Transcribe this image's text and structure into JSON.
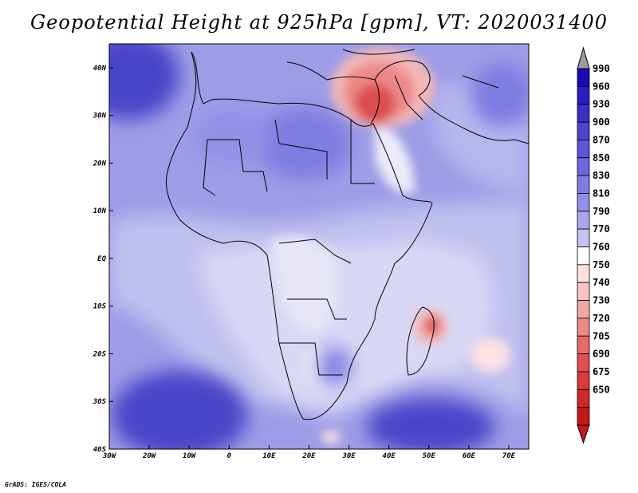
{
  "title": "Geopotential Height at 925hPa [gpm], VT: 2020031400",
  "credit": "GrADS: IGES/COLA",
  "colors": {
    "background_purple": "#9d9de7",
    "light_purple": "#c0c0ef",
    "pale": "#dcdcf6",
    "deep_purple": "#4a44c8",
    "red_core": "#dc4e4e",
    "land_pale": "#e6e6f7"
  },
  "map_data": {
    "lon_range": [
      -30,
      75
    ],
    "lat_range": [
      -40,
      45
    ],
    "lon_ticks": [
      {
        "label": "30W",
        "value": -30
      },
      {
        "label": "20W",
        "value": -20
      },
      {
        "label": "10W",
        "value": -10
      },
      {
        "label": "0",
        "value": 0
      },
      {
        "label": "10E",
        "value": 10
      },
      {
        "label": "20E",
        "value": 20
      },
      {
        "label": "30E",
        "value": 30
      },
      {
        "label": "40E",
        "value": 40
      },
      {
        "label": "50E",
        "value": 50
      },
      {
        "label": "60E",
        "value": 60
      },
      {
        "label": "70E",
        "value": 70
      }
    ],
    "lat_ticks": [
      {
        "label": "40N",
        "value": 40
      },
      {
        "label": "30N",
        "value": 30
      },
      {
        "label": "20N",
        "value": 20
      },
      {
        "label": "10N",
        "value": 10
      },
      {
        "label": "EQ",
        "value": 0
      },
      {
        "label": "10S",
        "value": -10
      },
      {
        "label": "20S",
        "value": -20
      },
      {
        "label": "30S",
        "value": -30
      },
      {
        "label": "40S",
        "value": -40
      }
    ]
  },
  "colorbar": {
    "levels": [
      "990",
      "960",
      "930",
      "900",
      "870",
      "850",
      "830",
      "810",
      "790",
      "770",
      "760",
      "750",
      "740",
      "730",
      "720",
      "705",
      "690",
      "675",
      "650"
    ],
    "colors": [
      "#1a0bb0",
      "#2a1ec0",
      "#3a30c8",
      "#4a44cf",
      "#5a56d6",
      "#6c68dc",
      "#7f7ce2",
      "#9390e8",
      "#a8a6ee",
      "#c4c3f4",
      "#ffffff",
      "#fde2e2",
      "#f8c4c4",
      "#f2a6a6",
      "#ec8888",
      "#e66a6a",
      "#e05050",
      "#d93a3a",
      "#d02828",
      "#c31818"
    ],
    "top_arrow_color": "#9c9c9c",
    "bottom_arrow_color": "#c31818"
  }
}
